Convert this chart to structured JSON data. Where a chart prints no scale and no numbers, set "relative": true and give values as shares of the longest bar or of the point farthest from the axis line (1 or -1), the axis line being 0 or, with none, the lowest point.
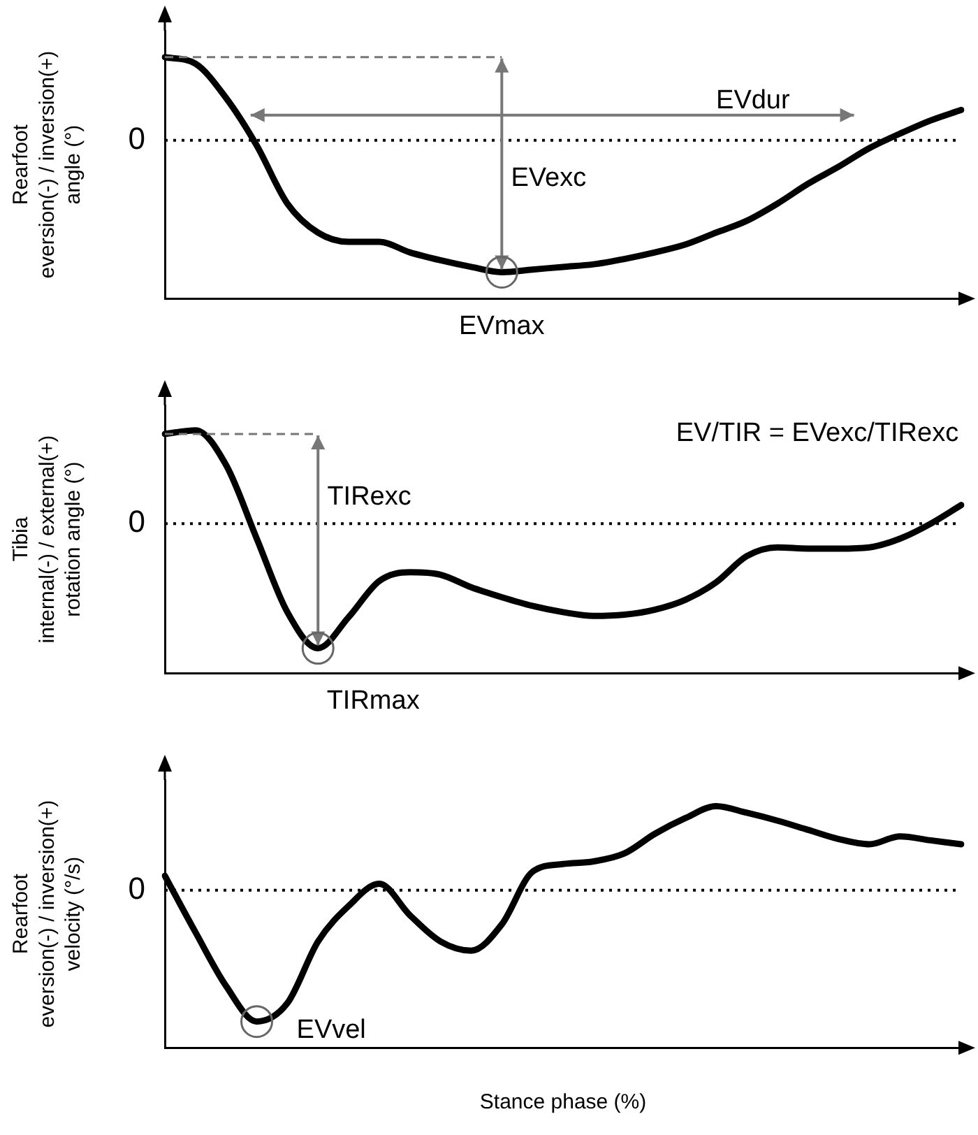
{
  "chart_data": [
    {
      "type": "line",
      "relative": true,
      "ylabel": "Rearfoot\neversion(-) / inversion(+)\nangle (°)",
      "categories": [
        null,
        null,
        null,
        null,
        null,
        null,
        null,
        null,
        null,
        null,
        null,
        null,
        null,
        null,
        null,
        null,
        null,
        null,
        null,
        null,
        null,
        null,
        null,
        null,
        null,
        null,
        null
      ],
      "series": [
        {
          "color": "#000000",
          "values": [
            0.63,
            0.58,
            0.32,
            -0.04,
            -0.48,
            -0.7,
            -0.77,
            -0.77,
            -0.85,
            -0.91,
            -0.96,
            -1,
            -0.98,
            -0.96,
            -0.94,
            -0.9,
            -0.85,
            -0.79,
            -0.7,
            -0.61,
            -0.48,
            -0.33,
            -0.2,
            -0.06,
            0.05,
            0.15,
            0.23
          ]
        }
      ],
      "ref_lines": [
        {
          "axis": "y",
          "value": 0,
          "label": "0",
          "line_style": "dotted"
        }
      ],
      "annotations": [
        "EVdur",
        "EVexc",
        "EVmax"
      ],
      "legend": false,
      "grid": false,
      "marker": "none",
      "line_style": "solid"
    },
    {
      "type": "line",
      "relative": true,
      "ylabel": "Tibia\ninternal(-) / external(+)\nrotation angle (°)",
      "categories": [
        null,
        null,
        null,
        null,
        null,
        null,
        null,
        null,
        null,
        null,
        null,
        null,
        null,
        null,
        null,
        null,
        null,
        null,
        null,
        null,
        null,
        null,
        null,
        null,
        null,
        null,
        null
      ],
      "series": [
        {
          "color": "#000000",
          "values": [
            0.72,
            0.75,
            0.47,
            -0.12,
            -0.71,
            -1,
            -0.75,
            -0.46,
            -0.39,
            -0.41,
            -0.51,
            -0.59,
            -0.66,
            -0.71,
            -0.74,
            -0.73,
            -0.69,
            -0.61,
            -0.47,
            -0.26,
            -0.19,
            -0.2,
            -0.2,
            -0.19,
            -0.12,
            0,
            0.15
          ]
        }
      ],
      "ref_lines": [
        {
          "axis": "y",
          "value": 0,
          "label": "0",
          "line_style": "dotted"
        }
      ],
      "annotations": [
        "EV/TIR = EVexc/TIRexc",
        "TIRexc",
        "TIRmax"
      ],
      "legend": false,
      "grid": false,
      "marker": "none",
      "line_style": "solid"
    },
    {
      "type": "line",
      "relative": true,
      "xlabel": "Stance phase (%)",
      "ylabel": "Rearfoot\neversion(-) / inversion(+)\nvelocity (°/s)",
      "categories": [
        null,
        null,
        null,
        null,
        null,
        null,
        null,
        null,
        null,
        null,
        null,
        null,
        null,
        null,
        null,
        null,
        null,
        null,
        null,
        null,
        null,
        null,
        null,
        null,
        null,
        null,
        null
      ],
      "series": [
        {
          "color": "#000000",
          "values": [
            0.11,
            -0.32,
            -0.73,
            -1,
            -0.86,
            -0.39,
            -0.12,
            0.05,
            -0.19,
            -0.39,
            -0.46,
            -0.26,
            0.14,
            0.2,
            0.22,
            0.28,
            0.43,
            0.55,
            0.64,
            0.59,
            0.53,
            0.46,
            0.39,
            0.35,
            0.41,
            0.38,
            0.35
          ]
        }
      ],
      "ref_lines": [
        {
          "axis": "y",
          "value": 0,
          "label": "0",
          "line_style": "dotted"
        }
      ],
      "annotations": [
        "EVvel"
      ],
      "legend": false,
      "grid": false,
      "marker": "none",
      "line_style": "solid"
    }
  ]
}
